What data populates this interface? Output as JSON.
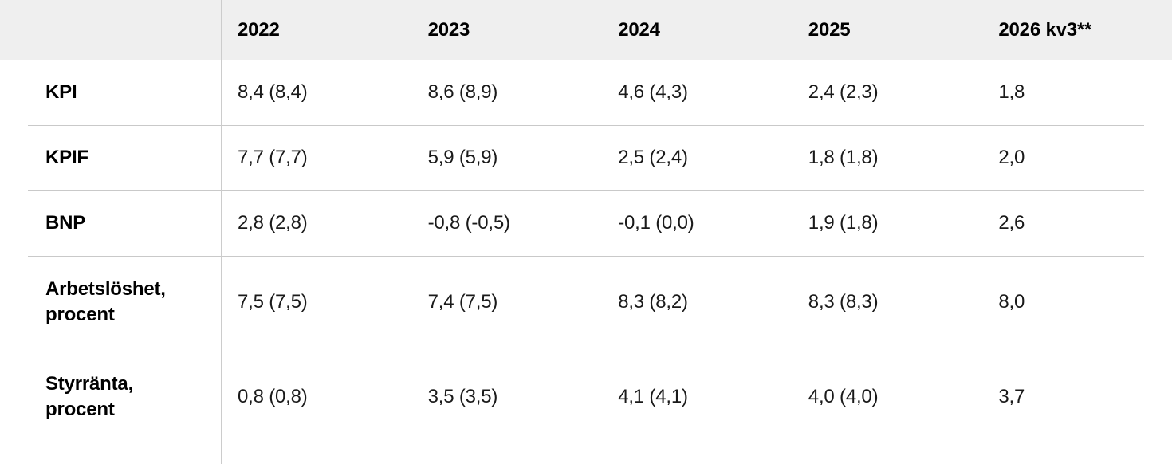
{
  "table": {
    "columns": [
      "",
      "2022",
      "2023",
      "2024",
      "2025",
      "2026 kv3**"
    ],
    "rows": [
      {
        "label": "KPI",
        "values": [
          "8,4 (8,4)",
          "8,6 (8,9)",
          "4,6 (4,3)",
          "2,4 (2,3)",
          "1,8"
        ]
      },
      {
        "label": "KPIF",
        "values": [
          "7,7 (7,7)",
          "5,9 (5,9)",
          "2,5 (2,4)",
          "1,8 (1,8)",
          "2,0"
        ]
      },
      {
        "label": "BNP",
        "values": [
          "2,8 (2,8)",
          "-0,8 (-0,5)",
          "-0,1 (0,0)",
          "1,9 (1,8)",
          "2,6"
        ]
      },
      {
        "label": "Arbetslöshet, procent",
        "values": [
          "7,5 (7,5)",
          "7,4 (7,5)",
          "8,3 (8,2)",
          "8,3 (8,3)",
          "8,0"
        ]
      },
      {
        "label": "Styrränta, procent",
        "values": [
          "0,8 (0,8)",
          "3,5 (3,5)",
          "4,1 (4,1)",
          "4,0 (4,0)",
          "3,7"
        ]
      }
    ],
    "colors": {
      "header_background": "#efefef",
      "divider": "#c9c9c9",
      "text": "#1a1a1a"
    }
  }
}
